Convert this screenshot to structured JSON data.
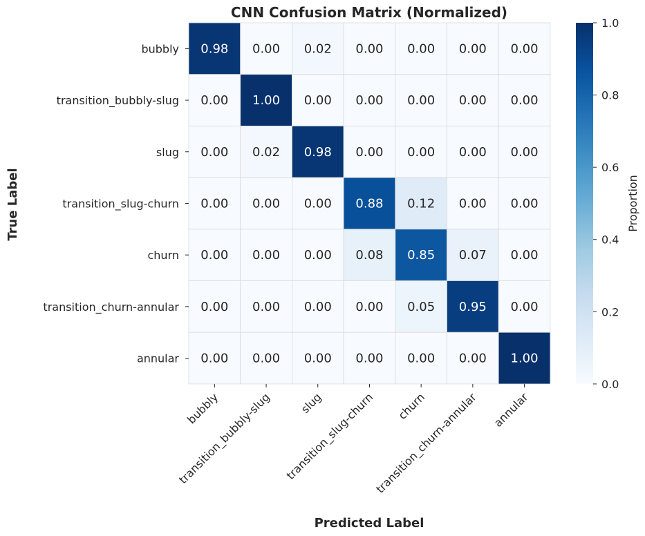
{
  "chart_data": {
    "type": "heatmap",
    "title": "CNN Confusion Matrix (Normalized)",
    "xlabel": "Predicted Label",
    "ylabel": "True Label",
    "row_labels": [
      "bubbly",
      "transition_bubbly-slug",
      "slug",
      "transition_slug-churn",
      "churn",
      "transition_churn-annular",
      "annular"
    ],
    "col_labels": [
      "bubbly",
      "transition_bubbly-slug",
      "slug",
      "transition_slug-churn",
      "churn",
      "transition_churn-annular",
      "annular"
    ],
    "values": [
      [
        0.98,
        0.0,
        0.02,
        0.0,
        0.0,
        0.0,
        0.0
      ],
      [
        0.0,
        1.0,
        0.0,
        0.0,
        0.0,
        0.0,
        0.0
      ],
      [
        0.0,
        0.02,
        0.98,
        0.0,
        0.0,
        0.0,
        0.0
      ],
      [
        0.0,
        0.0,
        0.0,
        0.88,
        0.12,
        0.0,
        0.0
      ],
      [
        0.0,
        0.0,
        0.0,
        0.08,
        0.85,
        0.07,
        0.0
      ],
      [
        0.0,
        0.0,
        0.0,
        0.0,
        0.05,
        0.95,
        0.0
      ],
      [
        0.0,
        0.0,
        0.0,
        0.0,
        0.0,
        0.0,
        1.0
      ]
    ],
    "value_format": "0.00",
    "colorbar": {
      "label": "Proportion",
      "range": [
        0.0,
        1.0
      ],
      "ticks": [
        "0.0",
        "0.2",
        "0.4",
        "0.6",
        "0.8",
        "1.0"
      ],
      "colormap": "Blues",
      "colors": [
        "#f7fbff",
        "#deebf7",
        "#c6dbef",
        "#9ecae1",
        "#6baed6",
        "#4292c6",
        "#2171b5",
        "#08519c",
        "#08306b"
      ]
    }
  }
}
